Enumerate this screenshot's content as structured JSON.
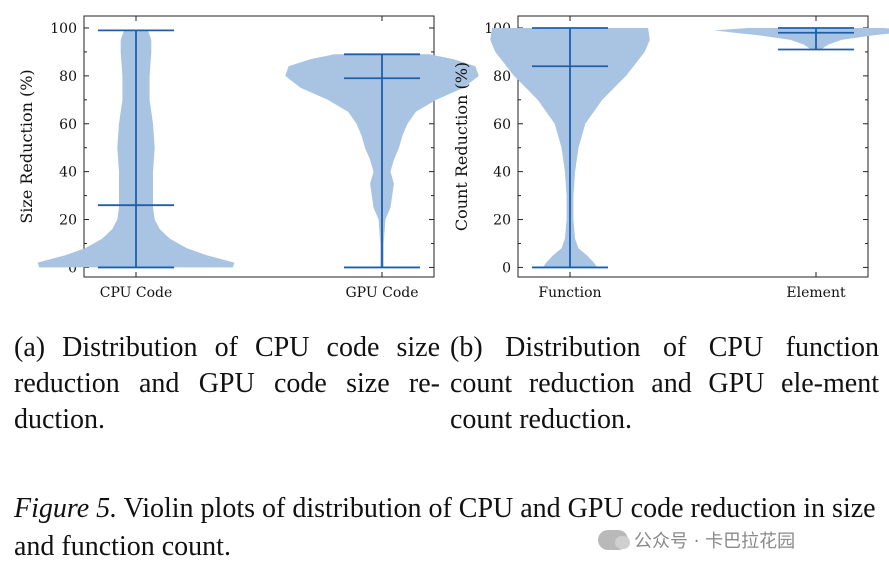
{
  "chart_data": [
    {
      "type": "violin",
      "ylabel": "Size Reduction (%)",
      "xlabel": "",
      "ylim": [
        -4,
        105
      ],
      "yticks": [
        0,
        20,
        40,
        60,
        80,
        100
      ],
      "categories": [
        "CPU Code",
        "GPU Code"
      ],
      "series": [
        {
          "category": "CPU Code",
          "min": 0,
          "mean": 26,
          "max": 99,
          "density": [
            [
              0,
              0.57
            ],
            [
              2,
              0.58
            ],
            [
              5,
              0.42
            ],
            [
              8,
              0.3
            ],
            [
              12,
              0.2
            ],
            [
              16,
              0.14
            ],
            [
              20,
              0.11
            ],
            [
              25,
              0.1
            ],
            [
              30,
              0.1
            ],
            [
              40,
              0.1
            ],
            [
              50,
              0.11
            ],
            [
              60,
              0.1
            ],
            [
              70,
              0.08
            ],
            [
              80,
              0.08
            ],
            [
              90,
              0.09
            ],
            [
              95,
              0.09
            ],
            [
              99,
              0.07
            ]
          ]
        },
        {
          "category": "GPU Code",
          "min": 0,
          "mean": 79,
          "max": 89,
          "density": [
            [
              0,
              0.01
            ],
            [
              10,
              0.01
            ],
            [
              20,
              0.02
            ],
            [
              25,
              0.05
            ],
            [
              30,
              0.06
            ],
            [
              35,
              0.07
            ],
            [
              40,
              0.05
            ],
            [
              45,
              0.07
            ],
            [
              50,
              0.1
            ],
            [
              55,
              0.12
            ],
            [
              60,
              0.15
            ],
            [
              65,
              0.2
            ],
            [
              70,
              0.32
            ],
            [
              75,
              0.48
            ],
            [
              80,
              0.57
            ],
            [
              84,
              0.55
            ],
            [
              87,
              0.42
            ],
            [
              89,
              0.28
            ]
          ]
        }
      ]
    },
    {
      "type": "violin",
      "ylabel": "Count Reduction (%)",
      "xlabel": "",
      "ylim": [
        -4,
        105
      ],
      "yticks": [
        0,
        20,
        40,
        60,
        80,
        100
      ],
      "categories": [
        "Function",
        "Element"
      ],
      "series": [
        {
          "category": "Function",
          "min": 0,
          "mean": 84,
          "max": 100,
          "density": [
            [
              0,
              0.16
            ],
            [
              2,
              0.14
            ],
            [
              5,
              0.1
            ],
            [
              8,
              0.05
            ],
            [
              12,
              0.03
            ],
            [
              20,
              0.02
            ],
            [
              30,
              0.02
            ],
            [
              40,
              0.03
            ],
            [
              50,
              0.05
            ],
            [
              60,
              0.09
            ],
            [
              70,
              0.19
            ],
            [
              80,
              0.33
            ],
            [
              90,
              0.44
            ],
            [
              95,
              0.47
            ],
            [
              100,
              0.46
            ]
          ]
        },
        {
          "category": "Element",
          "min": 91,
          "mean": 98,
          "max": 100,
          "density": [
            [
              91,
              0.03
            ],
            [
              93,
              0.07
            ],
            [
              95,
              0.15
            ],
            [
              97,
              0.34
            ],
            [
              98,
              0.48
            ],
            [
              99,
              0.6
            ],
            [
              100,
              0.4
            ]
          ]
        }
      ]
    }
  ],
  "captions": {
    "a": "(a) Distribution of CPU code size reduction and GPU code size re-duction.",
    "b": "(b) Distribution of CPU function count reduction and GPU ele-ment count reduction.",
    "figure_label": "Figure 5.",
    "figure_text": " Violin plots of distribution of CPU and GPU code reduction in size and function count."
  },
  "watermark": "公众号 · 卡巴拉花园",
  "colors": {
    "violin_fill": "#a9c4e2",
    "line": "#1f5fa8",
    "axis": "#222222"
  }
}
